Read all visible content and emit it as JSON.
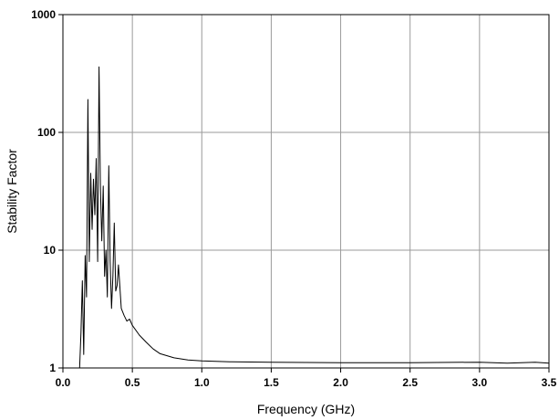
{
  "chart_data": {
    "type": "line",
    "title": "",
    "xlabel": "Frequency (GHz)",
    "ylabel": "Stability Factor",
    "xlim": [
      0,
      3.5
    ],
    "ylim": [
      1,
      1000
    ],
    "y_scale": "log",
    "grid": true,
    "x_ticks": [
      "0.0",
      "0.5",
      "1.0",
      "1.5",
      "2.0",
      "2.5",
      "3.0",
      "3.5"
    ],
    "y_ticks": [
      "1",
      "10",
      "100",
      "1000"
    ],
    "series": [
      {
        "color": "#000000",
        "x": [
          0.12,
          0.13,
          0.14,
          0.15,
          0.16,
          0.17,
          0.18,
          0.19,
          0.2,
          0.21,
          0.22,
          0.23,
          0.24,
          0.25,
          0.26,
          0.27,
          0.28,
          0.29,
          0.3,
          0.31,
          0.32,
          0.33,
          0.34,
          0.35,
          0.36,
          0.37,
          0.38,
          0.39,
          0.4,
          0.42,
          0.44,
          0.46,
          0.48,
          0.5,
          0.55,
          0.6,
          0.65,
          0.7,
          0.8,
          0.9,
          1.0,
          1.2,
          1.5,
          2.0,
          2.5,
          3.0,
          3.2,
          3.4,
          3.5
        ],
        "y": [
          1.0,
          2.0,
          5.5,
          1.3,
          9.0,
          4.0,
          190,
          8.0,
          45,
          15,
          40,
          20,
          60,
          8,
          360,
          35,
          12,
          35,
          6,
          10,
          4,
          52,
          8,
          3.2,
          6,
          17,
          4.5,
          5,
          7.5,
          3.2,
          2.8,
          2.5,
          2.6,
          2.3,
          1.9,
          1.65,
          1.45,
          1.32,
          1.22,
          1.17,
          1.15,
          1.13,
          1.12,
          1.11,
          1.11,
          1.12,
          1.1,
          1.12,
          1.1
        ]
      }
    ]
  }
}
